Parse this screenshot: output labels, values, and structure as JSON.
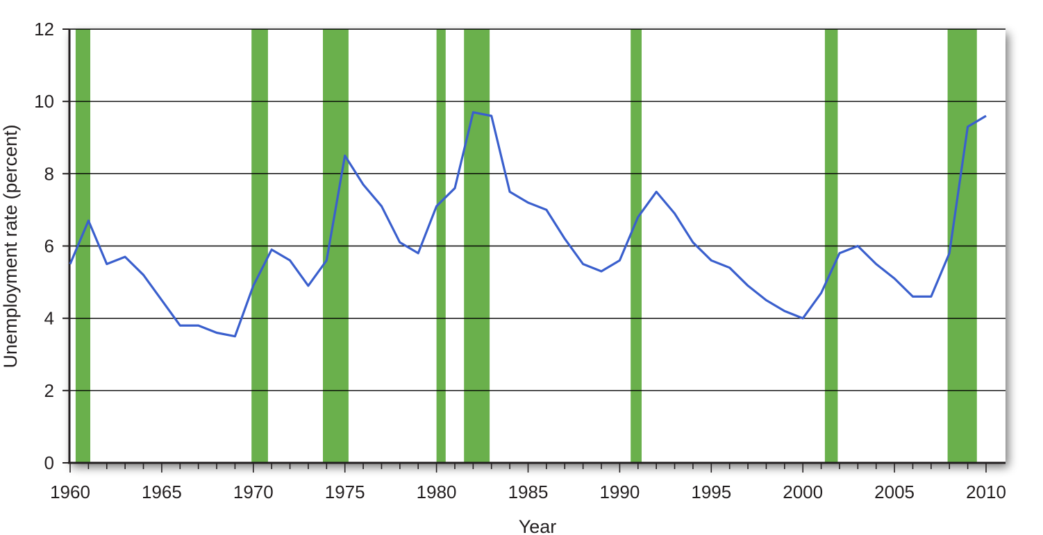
{
  "chart_data": {
    "type": "line",
    "xlabel": "Year",
    "ylabel": "Unemployment rate (percent)",
    "xlim": [
      1960,
      2010
    ],
    "ylim": [
      0,
      12
    ],
    "x_ticks": [
      1960,
      1965,
      1970,
      1975,
      1980,
      1985,
      1990,
      1995,
      2000,
      2005,
      2010
    ],
    "y_ticks": [
      0,
      2,
      4,
      6,
      8,
      10,
      12
    ],
    "grid": "horizontal",
    "colors": {
      "line": "#3a5fcd",
      "recession": "#6ab04c",
      "grid": "#000000"
    },
    "recessions": [
      [
        1960.3,
        1961.1
      ],
      [
        1969.9,
        1970.8
      ],
      [
        1973.8,
        1975.2
      ],
      [
        1980.0,
        1980.5
      ],
      [
        1981.5,
        1982.9
      ],
      [
        1990.6,
        1991.2
      ],
      [
        2001.2,
        2001.9
      ],
      [
        2007.9,
        2009.5
      ]
    ],
    "series": [
      {
        "x": [
          1960,
          1961,
          1962,
          1963,
          1964,
          1965,
          1966,
          1967,
          1968,
          1969,
          1970,
          1971,
          1972,
          1973,
          1974,
          1975,
          1976,
          1977,
          1978,
          1979,
          1980,
          1981,
          1982,
          1983,
          1984,
          1985,
          1986,
          1987,
          1988,
          1989,
          1990,
          1991,
          1992,
          1993,
          1994,
          1995,
          1996,
          1997,
          1998,
          1999,
          2000,
          2001,
          2002,
          2003,
          2004,
          2005,
          2006,
          2007,
          2008,
          2009,
          2010
        ],
        "values": [
          5.5,
          6.7,
          5.5,
          5.7,
          5.2,
          4.5,
          3.8,
          3.8,
          3.6,
          3.5,
          4.9,
          5.9,
          5.6,
          4.9,
          5.6,
          8.5,
          7.7,
          7.1,
          6.1,
          5.8,
          7.1,
          7.6,
          9.7,
          9.6,
          7.5,
          7.2,
          7.0,
          6.2,
          5.5,
          5.3,
          5.6,
          6.8,
          7.5,
          6.9,
          6.1,
          5.6,
          5.4,
          4.9,
          4.5,
          4.2,
          4.0,
          4.7,
          5.8,
          6.0,
          5.5,
          5.1,
          4.6,
          4.6,
          5.8,
          9.3,
          9.6
        ]
      }
    ]
  }
}
